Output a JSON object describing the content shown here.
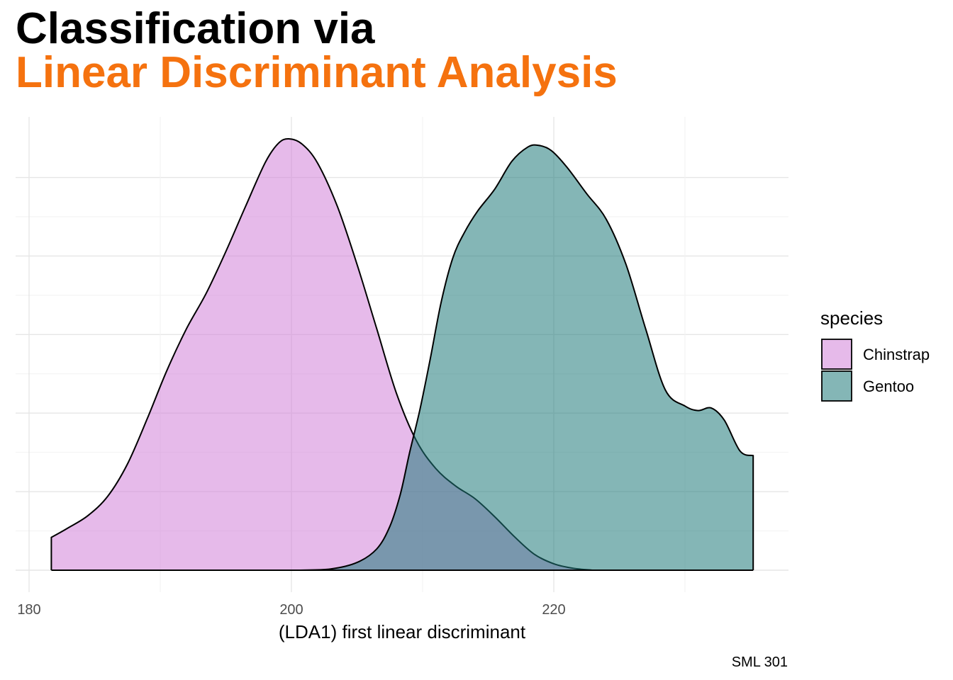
{
  "title_line1": "Classification via",
  "title_line2": "Linear Discriminant Analysis",
  "caption": "SML 301",
  "chart_data": {
    "type": "area",
    "subtype": "density",
    "xlabel": "(LDA1) first linear discriminant",
    "ylabel": "",
    "xlim": [
      178,
      234
    ],
    "ylim": [
      0,
      0.067
    ],
    "x_ticks": [
      180,
      200,
      220
    ],
    "x_tick_labels": [
      "180",
      "200",
      "220"
    ],
    "grid": true,
    "legend": {
      "title": "species",
      "position": "right"
    },
    "series": [
      {
        "name": "Chinstrap",
        "color": "#d282d8",
        "points": [
          [
            181.7,
            0.0051
          ],
          [
            183,
            0.0066
          ],
          [
            184.5,
            0.0085
          ],
          [
            186,
            0.0115
          ],
          [
            187.5,
            0.0165
          ],
          [
            189,
            0.0235
          ],
          [
            190.5,
            0.031
          ],
          [
            192,
            0.0375
          ],
          [
            193.5,
            0.043
          ],
          [
            195,
            0.0495
          ],
          [
            196.5,
            0.0565
          ],
          [
            198,
            0.0633
          ],
          [
            199,
            0.0663
          ],
          [
            199.8,
            0.067
          ],
          [
            200.8,
            0.0662
          ],
          [
            202,
            0.0632
          ],
          [
            203.5,
            0.0565
          ],
          [
            205,
            0.0475
          ],
          [
            206.5,
            0.0375
          ],
          [
            208,
            0.0275
          ],
          [
            209.5,
            0.0202
          ],
          [
            211,
            0.0158
          ],
          [
            212.5,
            0.0131
          ],
          [
            214,
            0.0111
          ],
          [
            215.5,
            0.0083
          ],
          [
            217,
            0.0052
          ],
          [
            218.5,
            0.0025
          ],
          [
            220,
            0.001
          ],
          [
            221.5,
            0.0003
          ],
          [
            223,
            0.0
          ]
        ]
      },
      {
        "name": "Gentoo",
        "color": "#1f7a7a",
        "points": [
          [
            200.5,
            0.0
          ],
          [
            203,
            0.0002
          ],
          [
            205,
            0.0012
          ],
          [
            206.5,
            0.0033
          ],
          [
            207.5,
            0.0068
          ],
          [
            208.3,
            0.0118
          ],
          [
            209,
            0.0182
          ],
          [
            209.8,
            0.025
          ],
          [
            210.6,
            0.033
          ],
          [
            211.4,
            0.0415
          ],
          [
            212.3,
            0.0485
          ],
          [
            213.2,
            0.0525
          ],
          [
            214.2,
            0.0558
          ],
          [
            215.5,
            0.0592
          ],
          [
            216.8,
            0.0635
          ],
          [
            218,
            0.0657
          ],
          [
            218.8,
            0.066
          ],
          [
            219.8,
            0.0652
          ],
          [
            221,
            0.0626
          ],
          [
            222.5,
            0.0585
          ],
          [
            224,
            0.0545
          ],
          [
            225.5,
            0.0475
          ],
          [
            227,
            0.0375
          ],
          [
            228.5,
            0.028
          ],
          [
            230,
            0.0255
          ],
          [
            231,
            0.0248
          ],
          [
            232,
            0.0252
          ],
          [
            233,
            0.0233
          ],
          [
            234.2,
            0.0185
          ],
          [
            235.2,
            0.0178
          ]
        ]
      }
    ]
  }
}
